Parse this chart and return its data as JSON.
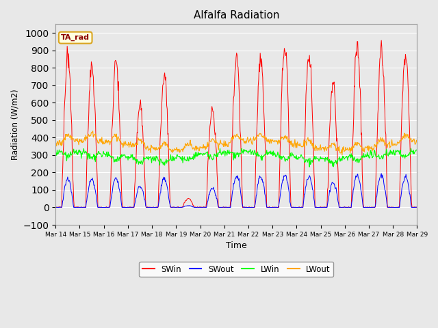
{
  "title": "Alfalfa Radiation",
  "xlabel": "Time",
  "ylabel": "Radiation (W/m2)",
  "ylim": [
    -100,
    1050
  ],
  "legend_labels": [
    "SWin",
    "SWout",
    "LWin",
    "LWout"
  ],
  "legend_colors": [
    "red",
    "blue",
    "green",
    "orange"
  ],
  "ta_rad_label": "TA_rad",
  "x_tick_labels": [
    "Mar 14",
    "Mar 15",
    "Mar 16",
    "Mar 17",
    "Mar 18",
    "Mar 19",
    "Mar 20",
    "Mar 21",
    "Mar 22",
    "Mar 23",
    "Mar 24",
    "Mar 25",
    "Mar 26",
    "Mar 27",
    "Mar 28",
    "Mar 29"
  ],
  "bg_color": "#e8e8e8",
  "sw_peaks": [
    850,
    800,
    830,
    590,
    750,
    50,
    570,
    855,
    855,
    920,
    860,
    700,
    910,
    900,
    870,
    10
  ],
  "swout_peaks": [
    160,
    160,
    170,
    120,
    165,
    10,
    110,
    175,
    175,
    185,
    180,
    140,
    185,
    185,
    175,
    5
  ],
  "LWin_mean": 300,
  "LWout_mean": 355
}
